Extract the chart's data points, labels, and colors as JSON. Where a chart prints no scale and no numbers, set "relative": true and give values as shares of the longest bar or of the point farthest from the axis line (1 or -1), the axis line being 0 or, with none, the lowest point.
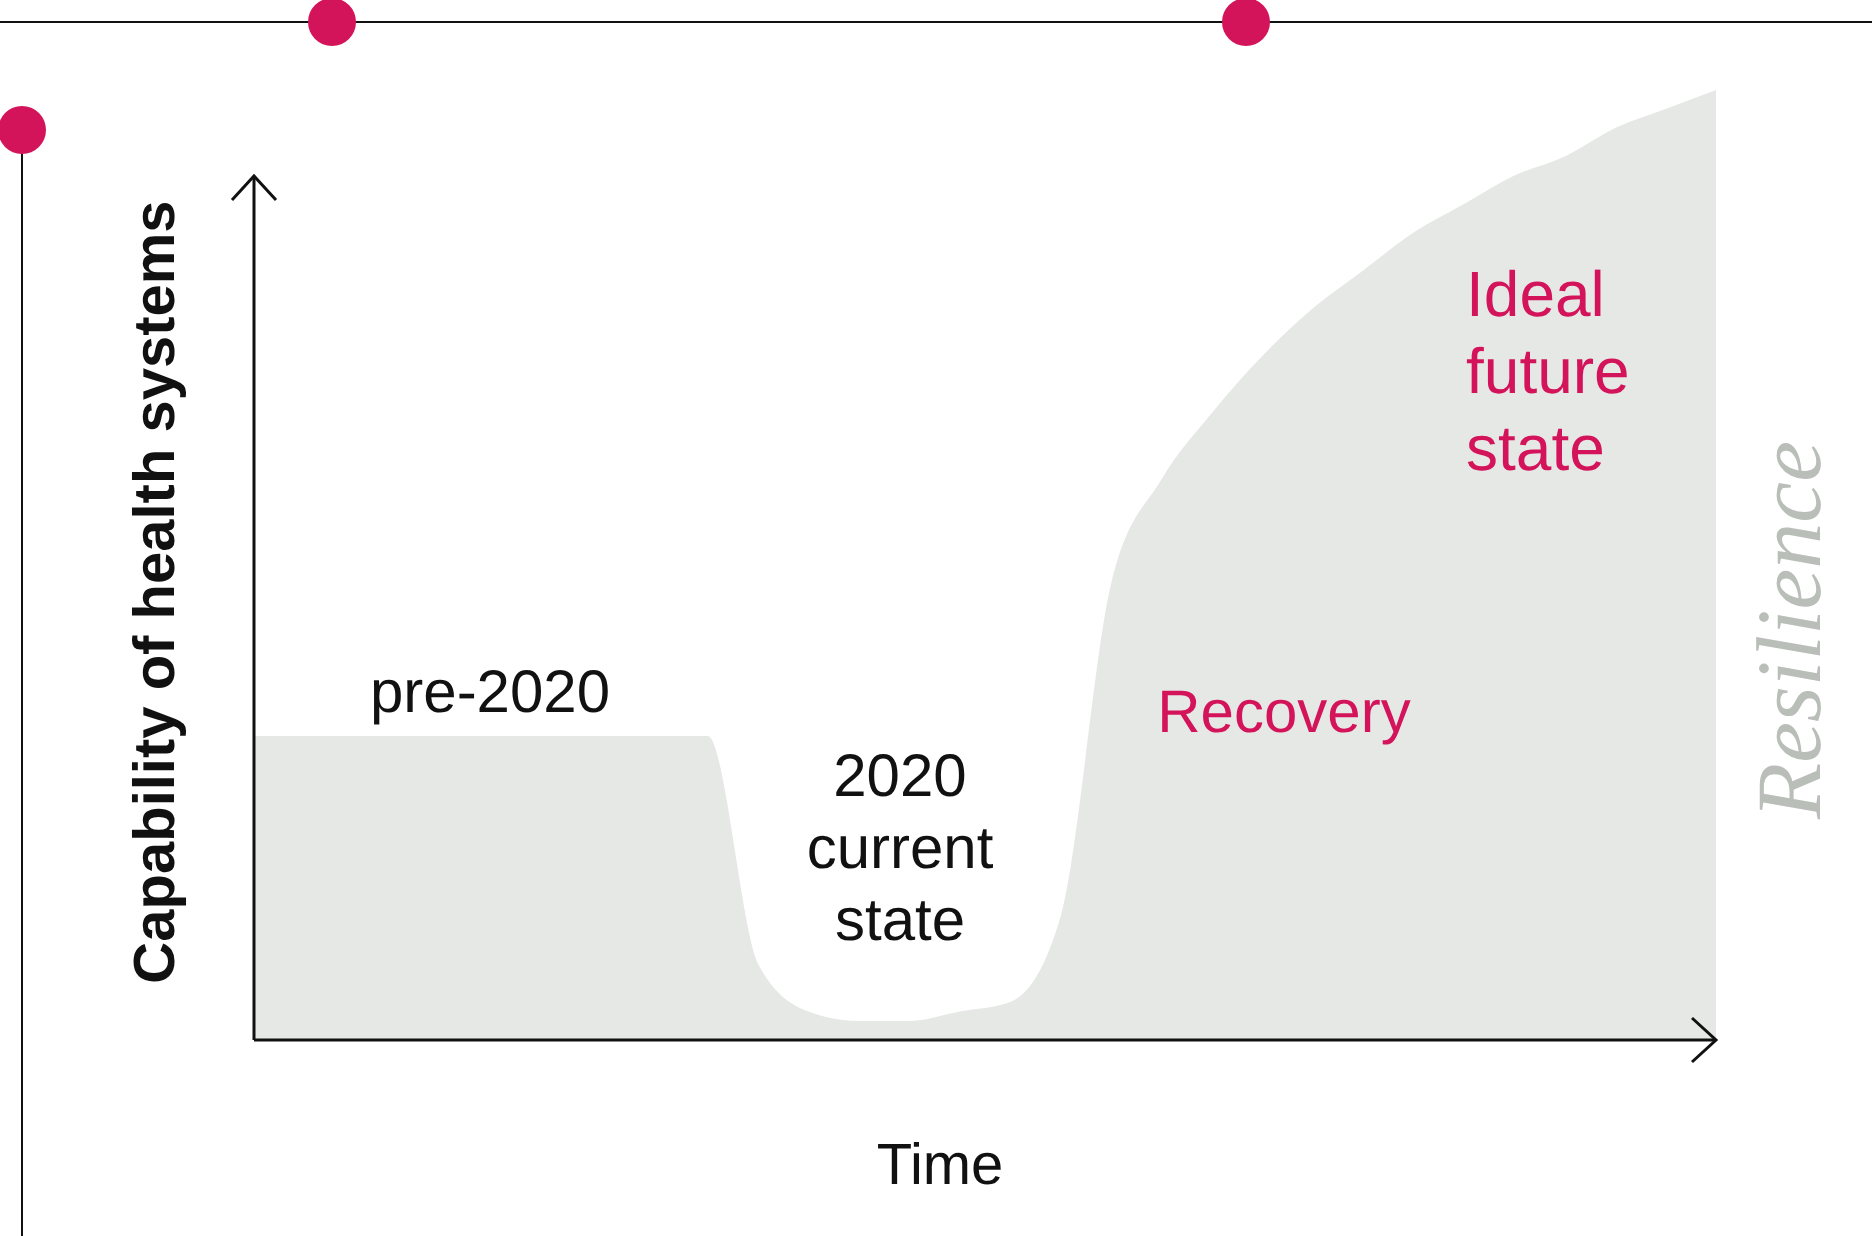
{
  "chart_data": {
    "type": "area",
    "relative": true,
    "xlabel": "Time",
    "ylabel": "Capability of health systems",
    "categories": [
      null,
      null,
      null,
      null,
      null,
      null,
      null,
      null,
      null,
      null,
      null,
      null,
      null,
      null,
      null,
      null,
      null,
      null,
      null,
      null,
      null,
      null,
      null,
      null,
      null,
      null,
      null,
      null,
      null,
      null
    ],
    "series": [
      {
        "color": "#e6e8e6",
        "values": [
          0.32,
          0.32,
          0.32,
          0.32,
          0.32,
          0.32,
          0.32,
          0.32,
          0.32,
          0.32,
          0.08,
          0.03,
          0.02,
          0.02,
          0.03,
          0.04,
          0.13,
          0.48,
          0.59,
          0.66,
          0.72,
          0.77,
          0.81,
          0.85,
          0.88,
          0.91,
          0.93,
          0.96,
          0.98,
          1
        ]
      }
    ],
    "annotations": [
      "pre-2020",
      "2020 current state",
      "Recovery",
      "Ideal future state",
      "Resilience"
    ]
  }
}
